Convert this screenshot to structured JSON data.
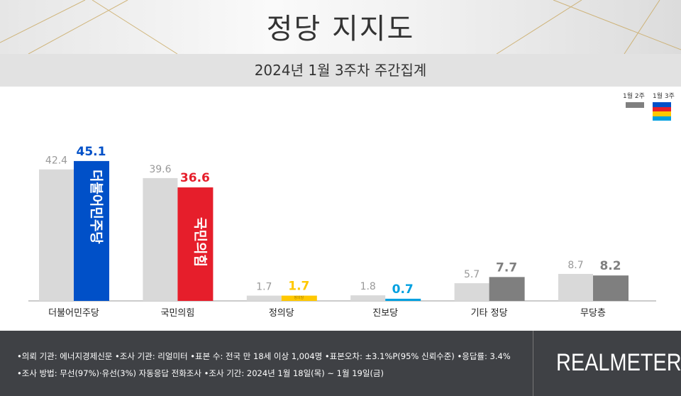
{
  "header": {
    "title": "정당 지지도",
    "subtitle": "2024년 1월 3주차 주간집계"
  },
  "legend": {
    "prev": "1월 2주",
    "curr": "1월 3주",
    "curr_stripes": [
      "#0050c8",
      "#e61e2b",
      "#ffc800",
      "#00a0e0"
    ]
  },
  "chart_data": {
    "type": "bar",
    "categories": [
      "더불어민주당",
      "국민의힘",
      "정의당",
      "진보당",
      "기타 정당",
      "무당층"
    ],
    "series": [
      {
        "name": "1월 2주",
        "values": [
          42.4,
          39.6,
          1.7,
          1.8,
          5.7,
          8.7
        ],
        "color": "#d9d9d9"
      },
      {
        "name": "1월 3주",
        "values": [
          45.1,
          36.6,
          1.7,
          0.7,
          7.7,
          8.2
        ],
        "colors": [
          "#0050c8",
          "#e61e2b",
          "#ffc800",
          "#00a0e0",
          "#7f7f7f",
          "#7f7f7f"
        ]
      }
    ],
    "bar_logos": [
      "더불어민주당",
      "국민의힘",
      "정의당",
      "",
      "",
      ""
    ],
    "ylim": [
      0,
      48
    ],
    "grid": false
  },
  "footer": {
    "line1": "•의뢰 기관: 에너지경제신문  •조사 기관: 리얼미터 •표본 수: 전국 만 18세 이상 1,004명 •표본오차: ±3.1%P(95% 신뢰수준) •응답률: 3.4%",
    "line2": "•조사 방법: 무선(97%)·유선(3%) 자동응답 전화조사 •조사 기간: 2024년 1월 18일(목) ~ 1월 19일(금)",
    "brand": "REALMETER"
  }
}
